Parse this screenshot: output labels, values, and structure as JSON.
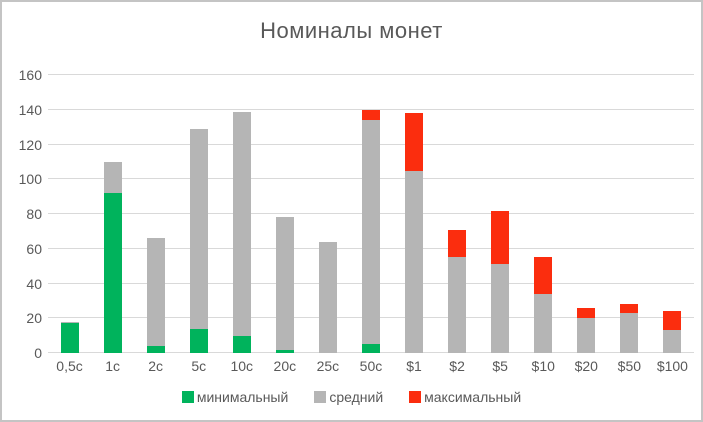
{
  "chart_data": {
    "type": "bar",
    "stacked": true,
    "title": "Номиналы монет",
    "categories": [
      "0,5c",
      "1c",
      "2c",
      "5c",
      "10c",
      "20c",
      "25c",
      "50c",
      "$1",
      "$2",
      "$5",
      "$10",
      "$20",
      "$50",
      "$100"
    ],
    "series": [
      {
        "key": "min",
        "name": "минимальный",
        "color": "#00B35C",
        "values": [
          17,
          92,
          4,
          14,
          10,
          2,
          0,
          5,
          0,
          0,
          0,
          0,
          0,
          0,
          0
        ]
      },
      {
        "key": "avg",
        "name": "средний",
        "color": "#B5B5B5",
        "values": [
          1,
          18,
          62,
          115,
          129,
          76,
          64,
          129,
          105,
          55,
          51,
          34,
          20,
          23,
          13
        ]
      },
      {
        "key": "max",
        "name": "максимальный",
        "color": "#FB2D0E",
        "values": [
          0,
          0,
          0,
          0,
          0,
          0,
          0,
          6,
          33,
          16,
          31,
          21,
          6,
          5,
          11
        ]
      }
    ],
    "ylim": [
      0,
      160
    ],
    "y_ticks": [
      0,
      20,
      40,
      60,
      80,
      100,
      120,
      140,
      160
    ],
    "grid": true,
    "legend_position": "bottom"
  },
  "colors": {
    "text": "#595959",
    "gridline": "#D9D9D9",
    "border": "#C4C4C4",
    "background": "#FFFFFF"
  }
}
